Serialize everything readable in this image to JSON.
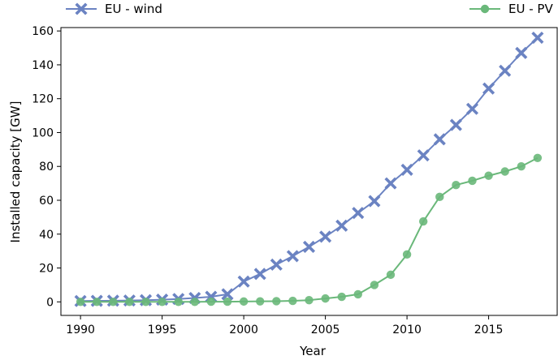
{
  "chart_data": {
    "type": "line",
    "title": "",
    "xlabel": "Year",
    "ylabel": "Installed capacity [GW]",
    "xlim": [
      1988.8,
      2019.2
    ],
    "ylim": [
      -8,
      162
    ],
    "x_ticks": [
      1990,
      1995,
      2000,
      2005,
      2010,
      2015
    ],
    "y_ticks": [
      0,
      20,
      40,
      60,
      80,
      100,
      120,
      140,
      160
    ],
    "x_tick_labels": [
      "1990",
      "1995",
      "2000",
      "2005",
      "2010",
      "2015"
    ],
    "y_tick_labels": [
      "0",
      "20",
      "40",
      "60",
      "80",
      "100",
      "120",
      "140",
      "160"
    ],
    "grid": false,
    "legend_position": "top, outside plot",
    "x": [
      1990,
      1991,
      1992,
      1993,
      1994,
      1995,
      1996,
      1997,
      1998,
      1999,
      2000,
      2001,
      2002,
      2003,
      2004,
      2005,
      2006,
      2007,
      2008,
      2009,
      2010,
      2011,
      2012,
      2013,
      2014,
      2015,
      2016,
      2017,
      2018
    ],
    "series": [
      {
        "name": "EU - wind",
        "color": "#6b83c2",
        "marker": "x",
        "values": [
          0.5,
          0.6,
          0.7,
          0.8,
          1.0,
          1.3,
          1.7,
          2.3,
          3.0,
          4.5,
          12.0,
          16.5,
          22.0,
          27.0,
          32.5,
          38.5,
          45.0,
          52.5,
          59.5,
          70.0,
          78.0,
          86.5,
          96.0,
          104.5,
          114.0,
          126.0,
          136.5,
          147.0,
          156.0
        ]
      },
      {
        "name": "EU - PV",
        "color": "#6ab87a",
        "marker": "o",
        "values": [
          0.0,
          0.0,
          0.0,
          0.0,
          0.0,
          0.0,
          0.0,
          0.0,
          0.1,
          0.1,
          0.2,
          0.3,
          0.4,
          0.6,
          1.0,
          2.0,
          3.0,
          4.5,
          10.0,
          16.0,
          28.0,
          47.5,
          62.0,
          69.0,
          71.5,
          74.5,
          77.0,
          80.0,
          85.0
        ]
      }
    ]
  }
}
